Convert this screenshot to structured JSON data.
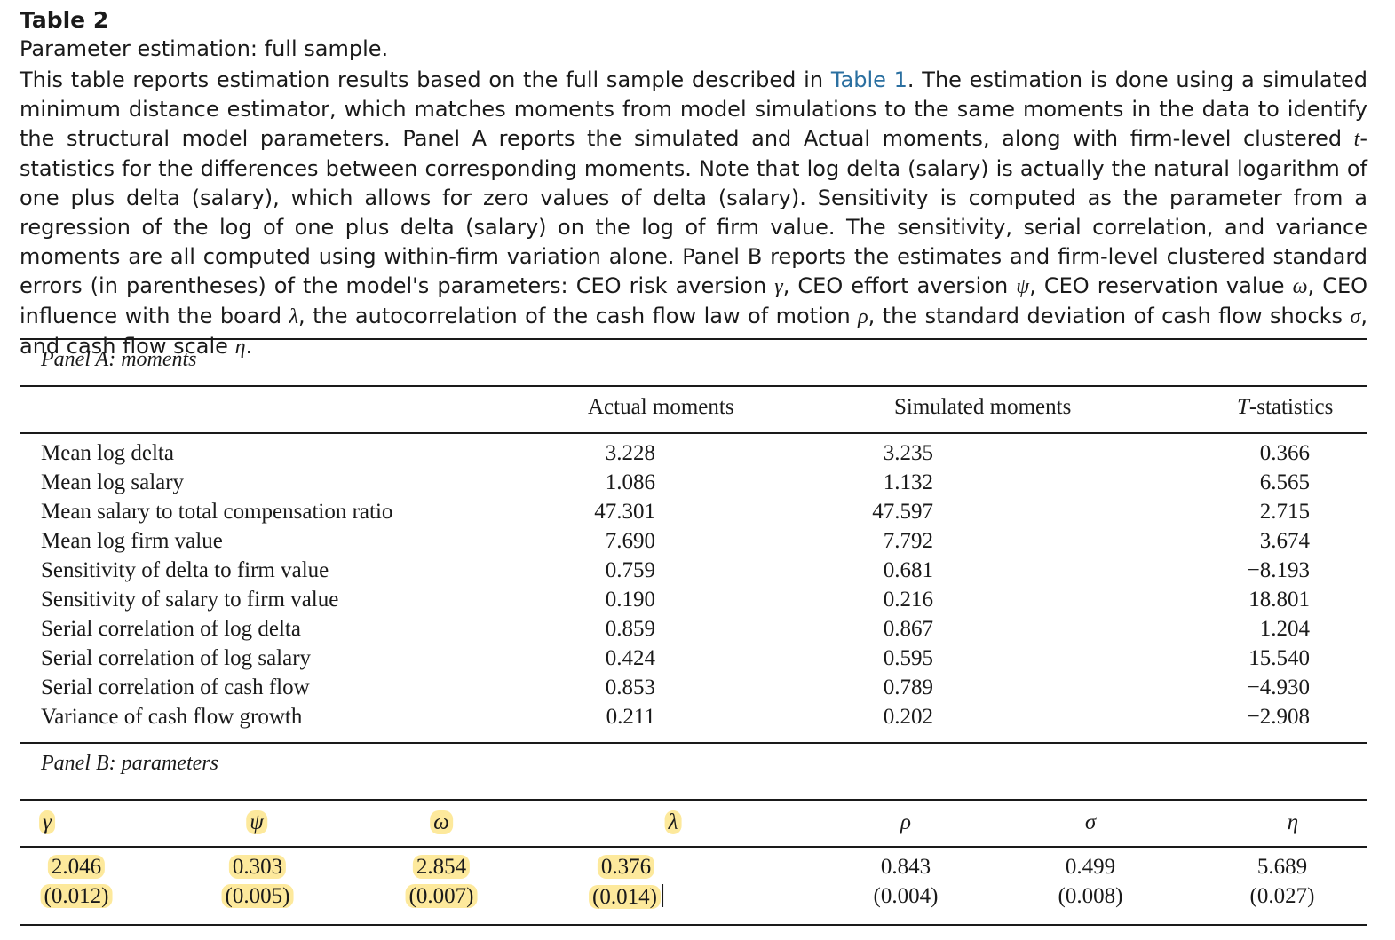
{
  "table_label": "Table 2",
  "table_title": "Parameter estimation: full sample.",
  "caption": {
    "part1": "This table reports estimation results based on the full sample described in ",
    "link": "Table 1",
    "part2": ". The estimation is done using a simulated minimum distance estimator, which matches moments from model simulations to the same moments in the data to identify the structural model parameters. Panel A reports the simulated and Actual moments, along with firm-level clustered ",
    "t_italic": "t",
    "part3": "-statistics for the differences between corresponding moments. Note that log delta (salary) is actually the natural logarithm of one plus delta (salary), which allows for zero values of delta (salary). Sensitivity is computed as the parameter from a regression of the log of one plus delta (salary) on the log of firm value. The sensitivity, serial correlation, and variance moments are all computed using within-firm variation alone. Panel B reports the estimates and firm-level clustered standard errors (in parentheses) of the model's parameters: CEO risk aversion ",
    "g1": "γ",
    "part4": ", CEO effort aversion ",
    "g2": "ψ",
    "part5": ", CEO reservation value ",
    "g3": "ω",
    "part6": ", CEO influence with the board ",
    "g4": "λ",
    "part7": ", the autocorrelation of the cash flow law of motion ",
    "g5": "ρ",
    "part8": ", the standard deviation of cash flow shocks ",
    "g6": "σ",
    "part9": ", and cash flow scale ",
    "g7": "η",
    "part10": "."
  },
  "panel_a": {
    "label": "Panel A: moments",
    "headers": {
      "actual": "Actual moments",
      "simulated": "Simulated moments",
      "t_italic": "T",
      "t_rest": "-statistics"
    },
    "rows": [
      {
        "label": "Mean log delta",
        "actual": "3.228",
        "simulated": "3.235",
        "t": "0.366"
      },
      {
        "label": "Mean log salary",
        "actual": "1.086",
        "simulated": "1.132",
        "t": "6.565"
      },
      {
        "label": "Mean salary to total compensation ratio",
        "actual": "47.301",
        "simulated": "47.597",
        "t": "2.715"
      },
      {
        "label": "Mean log firm value",
        "actual": "7.690",
        "simulated": "7.792",
        "t": "3.674"
      },
      {
        "label": "Sensitivity of delta to firm value",
        "actual": "0.759",
        "simulated": "0.681",
        "t": "−8.193"
      },
      {
        "label": "Sensitivity of salary to firm value",
        "actual": "0.190",
        "simulated": "0.216",
        "t": "18.801"
      },
      {
        "label": "Serial correlation of log delta",
        "actual": "0.859",
        "simulated": "0.867",
        "t": "1.204"
      },
      {
        "label": "Serial correlation of log salary",
        "actual": "0.424",
        "simulated": "0.595",
        "t": "15.540"
      },
      {
        "label": "Serial correlation of cash flow",
        "actual": "0.853",
        "simulated": "0.789",
        "t": "−4.930"
      },
      {
        "label": "Variance of cash flow growth",
        "actual": "0.211",
        "simulated": "0.202",
        "t": "−2.908"
      }
    ]
  },
  "panel_b": {
    "label": "Panel B: parameters",
    "params": [
      {
        "symbol": "γ",
        "estimate": "2.046",
        "se": "(0.012)",
        "highlighted": true
      },
      {
        "symbol": "ψ",
        "estimate": "0.303",
        "se": "(0.005)",
        "highlighted": true
      },
      {
        "symbol": "ω",
        "estimate": "2.854",
        "se": "(0.007)",
        "highlighted": true
      },
      {
        "symbol": "λ",
        "estimate": "0.376",
        "se": "(0.014)",
        "highlighted": true
      },
      {
        "symbol": "ρ",
        "estimate": "0.843",
        "se": "(0.004)",
        "highlighted": false
      },
      {
        "symbol": "σ",
        "estimate": "0.499",
        "se": "(0.008)",
        "highlighted": false
      },
      {
        "symbol": "η",
        "estimate": "5.689",
        "se": "(0.027)",
        "highlighted": false
      }
    ]
  },
  "colors": {
    "highlight": "#fde99c",
    "link": "#2a6fa0",
    "text": "#1a1a1a"
  }
}
